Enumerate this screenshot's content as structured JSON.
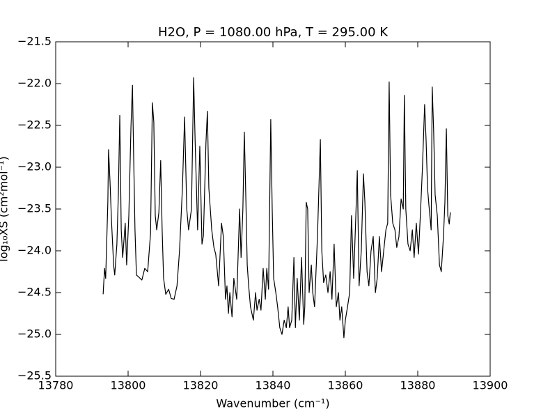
{
  "chart_data": {
    "type": "line",
    "title": "H2O, P = 1080.00 hPa, T = 295.00 K",
    "x_label": "Wavenumber (cm⁻¹)",
    "y_label": "log₁₀XS (cm²mol⁻¹)",
    "xlim": [
      13780,
      13900
    ],
    "xticks": [
      13780,
      13800,
      13820,
      13840,
      13860,
      13880,
      13900
    ],
    "ylim": [
      -25.5,
      -21.5
    ],
    "yticks": [
      {
        "value": -25.5,
        "label": "−25.5"
      },
      {
        "value": -25.0,
        "label": "−25.0"
      },
      {
        "value": -24.5,
        "label": "−24.5"
      },
      {
        "value": -24.0,
        "label": "−24.0"
      },
      {
        "value": -23.5,
        "label": "−23.5"
      },
      {
        "value": -23.0,
        "label": "−23.0"
      },
      {
        "value": -22.5,
        "label": "−22.5"
      },
      {
        "value": -22.0,
        "label": "−22.0"
      },
      {
        "value": -21.5,
        "label": "−21.5"
      }
    ],
    "grid": false,
    "series": [
      {
        "color": "#000000",
        "x": [
          13793.1,
          13793.5,
          13793.8,
          13794.4,
          13794.6,
          13795.0,
          13795.4,
          13796.0,
          13796.3,
          13796.9,
          13797.3,
          13797.7,
          13798.1,
          13798.5,
          13799.2,
          13799.6,
          13800.2,
          13800.8,
          13801.2,
          13801.5,
          13801.9,
          13802.3,
          13803.1,
          13803.8,
          13804.6,
          13805.4,
          13806.2,
          13806.7,
          13807.1,
          13807.5,
          13807.9,
          13808.5,
          13809.0,
          13809.4,
          13809.8,
          13810.4,
          13811.2,
          13811.9,
          13812.7,
          13813.5,
          13814.2,
          13815.0,
          13815.6,
          13816.2,
          13816.7,
          13817.5,
          13818.1,
          13818.5,
          13819.2,
          13819.8,
          13820.4,
          13820.8,
          13821.5,
          13821.9,
          13822.3,
          13822.7,
          13823.1,
          13823.7,
          13824.2,
          13825.0,
          13825.8,
          13826.3,
          13826.9,
          13827.3,
          13827.7,
          13828.1,
          13828.7,
          13829.2,
          13830.0,
          13830.8,
          13831.2,
          13831.7,
          13832.1,
          13832.5,
          13832.9,
          13833.3,
          13833.8,
          13834.6,
          13835.2,
          13835.6,
          13836.2,
          13836.7,
          13837.3,
          13837.9,
          13838.3,
          13838.8,
          13839.4,
          13839.8,
          13840.2,
          13840.8,
          13841.3,
          13841.9,
          13842.5,
          13843.1,
          13843.7,
          13844.2,
          13844.6,
          13845.2,
          13845.8,
          13846.2,
          13846.7,
          13847.3,
          13847.9,
          13848.5,
          13848.8,
          13849.2,
          13849.6,
          13850.0,
          13850.6,
          13851.0,
          13851.5,
          13852.3,
          13853.1,
          13853.5,
          13854.0,
          13854.6,
          13855.2,
          13855.8,
          13856.3,
          13856.9,
          13857.5,
          13858.1,
          13858.5,
          13859.0,
          13859.6,
          13860.0,
          13860.6,
          13861.2,
          13861.7,
          13862.3,
          13862.9,
          13863.3,
          13863.8,
          13864.4,
          13865.0,
          13865.4,
          13866.0,
          13866.5,
          13867.1,
          13867.7,
          13868.3,
          13868.8,
          13869.4,
          13870.0,
          13870.6,
          13871.2,
          13871.7,
          13872.1,
          13872.5,
          13873.1,
          13873.7,
          13874.2,
          13874.8,
          13875.4,
          13876.0,
          13876.3,
          13876.7,
          13877.3,
          13877.9,
          13878.5,
          13879.0,
          13879.6,
          13880.2,
          13880.8,
          13881.3,
          13881.9,
          13882.3,
          13882.7,
          13883.1,
          13883.7,
          13884.0,
          13884.4,
          13884.8,
          13885.4,
          13886.0,
          13886.5,
          13887.1,
          13887.5,
          13887.9,
          13888.3,
          13888.7,
          13889.0
        ],
        "values": [
          -24.52,
          -24.21,
          -24.33,
          -23.42,
          -22.79,
          -23.17,
          -23.63,
          -24.17,
          -24.29,
          -23.92,
          -23.33,
          -22.38,
          -23.75,
          -24.08,
          -23.67,
          -24.17,
          -23.58,
          -22.5,
          -22.02,
          -22.79,
          -23.75,
          -24.29,
          -24.32,
          -24.35,
          -24.21,
          -24.25,
          -23.79,
          -22.23,
          -22.46,
          -23.58,
          -23.75,
          -23.54,
          -22.92,
          -23.75,
          -24.33,
          -24.52,
          -24.46,
          -24.57,
          -24.58,
          -24.42,
          -24.0,
          -23.25,
          -22.4,
          -23.5,
          -23.75,
          -23.5,
          -21.93,
          -22.67,
          -23.75,
          -22.75,
          -23.92,
          -23.82,
          -22.71,
          -22.33,
          -23.25,
          -23.5,
          -23.75,
          -23.96,
          -24.04,
          -24.42,
          -23.67,
          -23.83,
          -24.58,
          -24.42,
          -24.75,
          -24.5,
          -24.79,
          -24.33,
          -24.58,
          -23.5,
          -24.08,
          -23.5,
          -22.58,
          -23.33,
          -24.17,
          -24.42,
          -24.67,
          -24.83,
          -24.5,
          -24.71,
          -24.58,
          -24.71,
          -24.21,
          -24.58,
          -24.21,
          -24.46,
          -22.43,
          -23.5,
          -24.33,
          -24.5,
          -24.67,
          -24.92,
          -25.0,
          -24.83,
          -24.92,
          -24.67,
          -24.92,
          -24.83,
          -24.08,
          -24.92,
          -24.33,
          -24.83,
          -24.08,
          -24.88,
          -24.67,
          -23.42,
          -23.5,
          -24.5,
          -24.17,
          -24.5,
          -24.67,
          -23.83,
          -22.67,
          -24.0,
          -24.38,
          -24.29,
          -24.5,
          -24.25,
          -24.58,
          -23.92,
          -24.67,
          -24.5,
          -24.83,
          -24.67,
          -25.04,
          -24.83,
          -24.67,
          -24.5,
          -23.58,
          -24.33,
          -23.58,
          -23.04,
          -24.42,
          -24.0,
          -23.08,
          -23.42,
          -24.25,
          -24.42,
          -24.0,
          -23.83,
          -24.5,
          -24.33,
          -23.83,
          -24.25,
          -24.0,
          -23.75,
          -23.67,
          -21.98,
          -23.33,
          -23.67,
          -23.75,
          -23.96,
          -23.83,
          -23.38,
          -23.5,
          -22.14,
          -23.5,
          -23.92,
          -24.0,
          -23.75,
          -24.08,
          -23.67,
          -24.04,
          -23.5,
          -23.0,
          -22.25,
          -22.67,
          -23.25,
          -23.46,
          -23.75,
          -22.04,
          -22.58,
          -23.33,
          -23.58,
          -24.17,
          -24.25,
          -23.83,
          -23.42,
          -22.54,
          -23.58,
          -23.68,
          -23.54
        ]
      }
    ]
  }
}
